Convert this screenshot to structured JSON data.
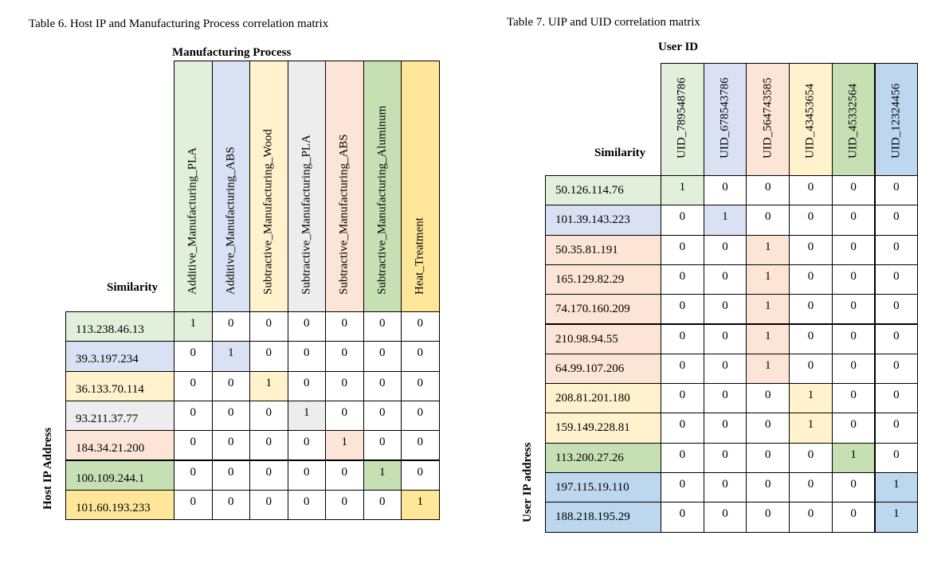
{
  "palette": {
    "green": "#e2efda",
    "blue": "#d9e1f2",
    "yellow": "#fff2cc",
    "gray": "#ededed",
    "pink": "#fce4d6",
    "midgreen": "#c6e0b4",
    "gold": "#ffe699",
    "steel": "#bdd7ee"
  },
  "table6": {
    "caption": "Table 6. Host IP and Manufacturing Process correlation matrix",
    "column_group_label": "Manufacturing Process",
    "corner_label": "Similarity",
    "row_group_label": "Host IP Address",
    "columns": [
      {
        "label": "Additive_Manufacturing_PLA",
        "color": "#e2efda"
      },
      {
        "label": "Additive_Manufacturing_ABS",
        "color": "#d9e1f2"
      },
      {
        "label": "Subtractive_Manufacturing_Wood",
        "color": "#fff2cc"
      },
      {
        "label": "Subtractive_Manufacturing_PLA",
        "color": "#ededed"
      },
      {
        "label": "Subtractive_Manufacturing_ABS",
        "color": "#fce4d6"
      },
      {
        "label": "Subtractive_Manufacturing_Aluminum",
        "color": "#c6e0b4"
      },
      {
        "label": "Heat_Treatment",
        "color": "#ffe699"
      }
    ],
    "rows": [
      {
        "label": "113.238.46.13",
        "color": "#e2efda",
        "values": [
          "1",
          "0",
          "0",
          "0",
          "0",
          "0",
          "0"
        ],
        "hi": 0
      },
      {
        "label": "39.3.197.234",
        "color": "#d9e1f2",
        "values": [
          "0",
          "1",
          "0",
          "0",
          "0",
          "0",
          "0"
        ],
        "hi": 1
      },
      {
        "label": "36.133.70.114",
        "color": "#fff2cc",
        "values": [
          "0",
          "0",
          "1",
          "0",
          "0",
          "0",
          "0"
        ],
        "hi": 2
      },
      {
        "label": "93.211.37.77",
        "color": "#ededed",
        "values": [
          "0",
          "0",
          "0",
          "1",
          "0",
          "0",
          "0"
        ],
        "hi": 3
      },
      {
        "label": "184.34.21.200",
        "color": "#fce4d6",
        "values": [
          "0",
          "0",
          "0",
          "0",
          "1",
          "0",
          "0"
        ],
        "hi": 4
      },
      {
        "label": "100.109.244.1",
        "color": "#c6e0b4",
        "values": [
          "0",
          "0",
          "0",
          "0",
          "0",
          "1",
          "0"
        ],
        "hi": 5
      },
      {
        "label": "101.60.193.233",
        "color": "#ffe699",
        "values": [
          "0",
          "0",
          "0",
          "0",
          "0",
          "0",
          "1"
        ],
        "hi": 6
      }
    ]
  },
  "table7": {
    "caption": "Table 7. UIP and UID correlation matrix",
    "column_group_label": "User ID",
    "corner_label": "Similarity",
    "row_group_label": "User IP address",
    "columns": [
      {
        "label": "UID_789548786",
        "color": "#e2efda"
      },
      {
        "label": "UID_678543786",
        "color": "#d9e1f2"
      },
      {
        "label": "UID_564743585",
        "color": "#fce4d6"
      },
      {
        "label": "UID_43453654",
        "color": "#fff2cc"
      },
      {
        "label": "UID_45332564",
        "color": "#c6e0b4"
      },
      {
        "label": "UID_12324456",
        "color": "#bdd7ee"
      }
    ],
    "rows": [
      {
        "label": "50.126.114.76",
        "color": "#e2efda",
        "values": [
          "1",
          "0",
          "0",
          "0",
          "0",
          "0"
        ],
        "hi": 0
      },
      {
        "label": "101.39.143.223",
        "color": "#d9e1f2",
        "values": [
          "0",
          "1",
          "0",
          "0",
          "0",
          "0"
        ],
        "hi": 1
      },
      {
        "label": "50.35.81.191",
        "color": "#fce4d6",
        "values": [
          "0",
          "0",
          "1",
          "0",
          "0",
          "0"
        ],
        "hi": 2
      },
      {
        "label": "165.129.82.29",
        "color": "#fce4d6",
        "values": [
          "0",
          "0",
          "1",
          "0",
          "0",
          "0"
        ],
        "hi": 2
      },
      {
        "label": "74.170.160.209",
        "color": "#fce4d6",
        "values": [
          "0",
          "0",
          "1",
          "0",
          "0",
          "0"
        ],
        "hi": 2
      },
      {
        "label": "210.98.94.55",
        "color": "#fce4d6",
        "values": [
          "0",
          "0",
          "1",
          "0",
          "0",
          "0"
        ],
        "hi": 2
      },
      {
        "label": "64.99.107.206",
        "color": "#fce4d6",
        "values": [
          "0",
          "0",
          "1",
          "0",
          "0",
          "0"
        ],
        "hi": 2
      },
      {
        "label": "208.81.201.180",
        "color": "#fff2cc",
        "values": [
          "0",
          "0",
          "0",
          "1",
          "0",
          "0"
        ],
        "hi": 3
      },
      {
        "label": "159.149.228.81",
        "color": "#fff2cc",
        "values": [
          "0",
          "0",
          "0",
          "1",
          "0",
          "0"
        ],
        "hi": 3
      },
      {
        "label": "113.200.27.26",
        "color": "#c6e0b4",
        "values": [
          "0",
          "0",
          "0",
          "0",
          "1",
          "0"
        ],
        "hi": 4
      },
      {
        "label": "197.115.19.110",
        "color": "#bdd7ee",
        "values": [
          "0",
          "0",
          "0",
          "0",
          "0",
          "1"
        ],
        "hi": 5
      },
      {
        "label": "188.218.195.29",
        "color": "#bdd7ee",
        "values": [
          "0",
          "0",
          "0",
          "0",
          "0",
          "1"
        ],
        "hi": 5
      }
    ]
  }
}
